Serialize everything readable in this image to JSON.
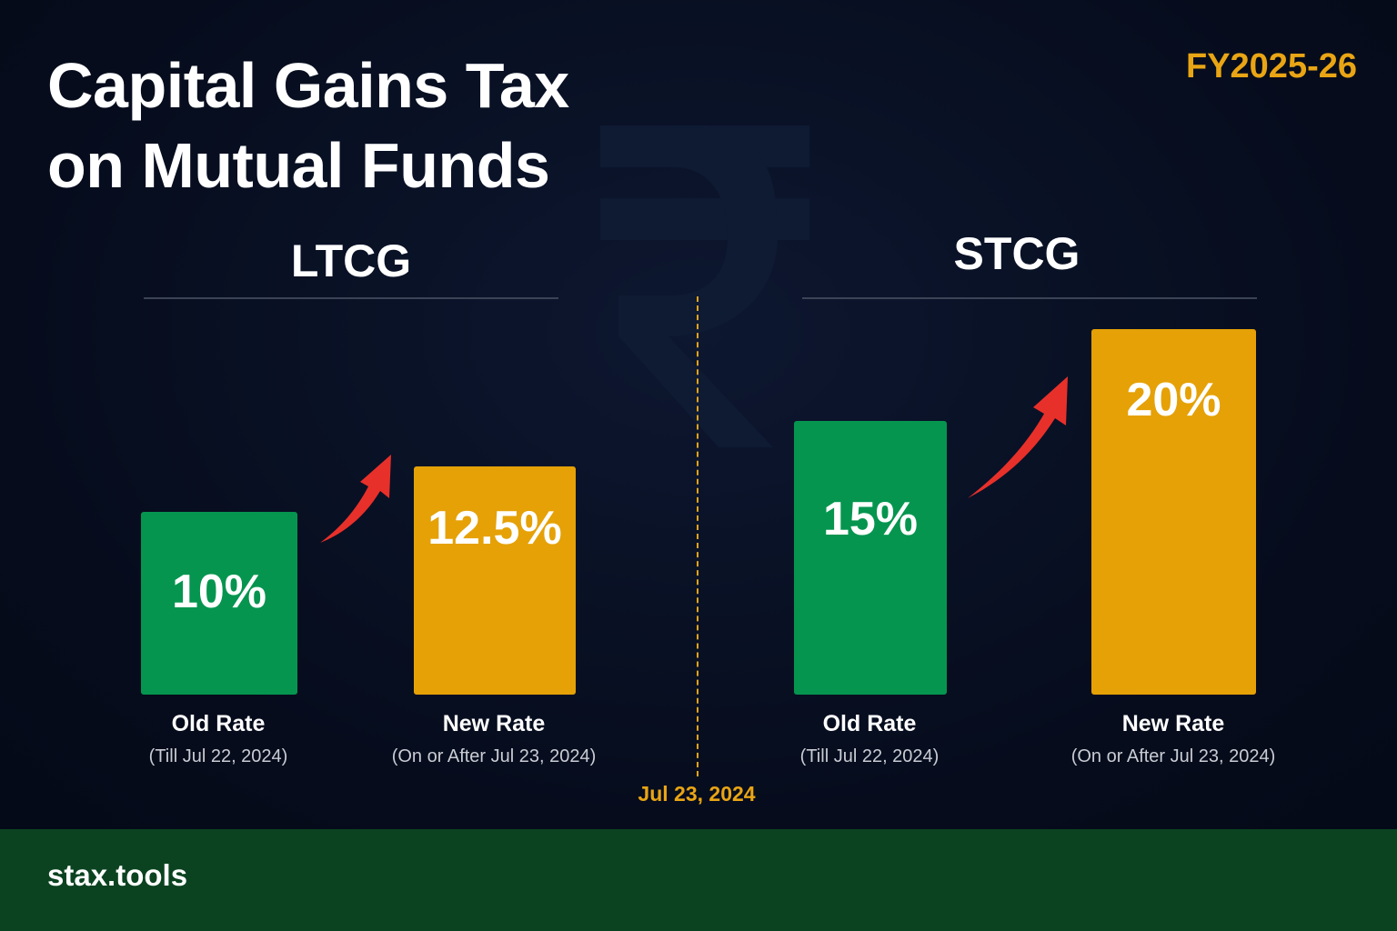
{
  "header": {
    "title_line1": "Capital Gains Tax",
    "title_line2": "on Mutual Funds",
    "fiscal_year": "FY2025-26"
  },
  "divider": {
    "date": "Jul 23, 2024"
  },
  "footer": {
    "brand": "stax.tools"
  },
  "colors": {
    "old_rate": "#05954f",
    "new_rate": "#e5a106",
    "arrow": "#e8302a",
    "accent": "#e9a514",
    "footer": "#0b4320"
  },
  "icons": {
    "background": "rupee-icon",
    "increase": "arrow-up-right-icon"
  },
  "chart_data": [
    {
      "type": "bar",
      "title": "LTCG",
      "categories": [
        "Old Rate",
        "New Rate"
      ],
      "category_notes": [
        "(Till Jul 22, 2024)",
        "(On or After Jul 23, 2024)"
      ],
      "values": [
        10,
        12.5
      ],
      "value_labels": [
        "10%",
        "12.5%"
      ]
    },
    {
      "type": "bar",
      "title": "STCG",
      "categories": [
        "Old Rate",
        "New Rate"
      ],
      "category_notes": [
        "(Till Jul 22, 2024)",
        "(On or After Jul 23, 2024)"
      ],
      "values": [
        15,
        20
      ],
      "value_labels": [
        "15%",
        "20%"
      ]
    }
  ]
}
